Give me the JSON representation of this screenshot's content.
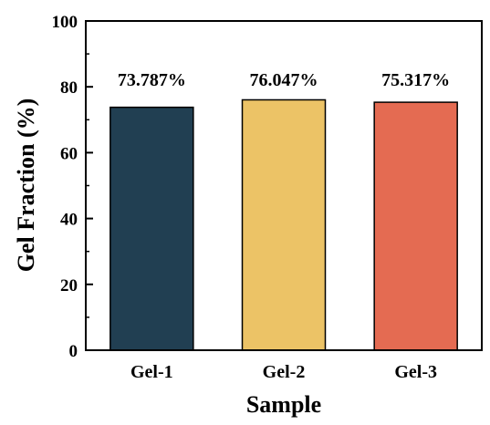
{
  "chart_data": {
    "type": "bar",
    "title": "",
    "xlabel": "Sample",
    "ylabel": "Gel Fraction (%)",
    "categories": [
      "Gel-1",
      "Gel-2",
      "Gel-3"
    ],
    "values": [
      73.787,
      76.047,
      75.317
    ],
    "data_labels": [
      "73.787%",
      "76.047%",
      "75.317%"
    ],
    "colors": [
      "#213f52",
      "#ecc366",
      "#e46b52"
    ],
    "ylim": [
      0,
      100
    ],
    "yticks": [
      0,
      20,
      40,
      60,
      80,
      100
    ],
    "ytick_labels": [
      "0",
      "20",
      "40",
      "60",
      "80",
      "100"
    ],
    "grid": false,
    "legend": "none"
  }
}
